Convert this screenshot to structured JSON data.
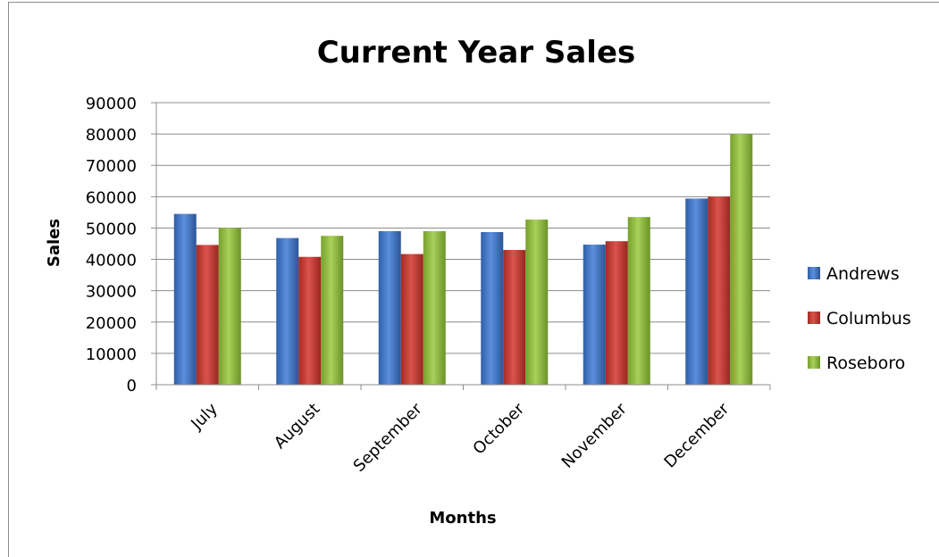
{
  "chart_data": {
    "type": "bar",
    "title": "Current Year Sales",
    "xlabel": "Months",
    "ylabel": "Sales",
    "categories": [
      "July",
      "August",
      "September",
      "October",
      "November",
      "December"
    ],
    "ylim": [
      0,
      90000
    ],
    "yticks": [
      0,
      10000,
      20000,
      30000,
      40000,
      50000,
      60000,
      70000,
      80000,
      90000
    ],
    "grid": true,
    "legend_position": "right",
    "series": [
      {
        "name": "Andrews",
        "color": "#3f74c4",
        "values": [
          54500,
          46800,
          49000,
          48700,
          44700,
          59400
        ]
      },
      {
        "name": "Columbus",
        "color": "#c0392b",
        "values": [
          44600,
          40800,
          41700,
          43000,
          45800,
          60000
        ]
      },
      {
        "name": "Roseboro",
        "color": "#8dbb3a",
        "values": [
          50000,
          47500,
          49000,
          52700,
          53500,
          80000
        ]
      }
    ]
  }
}
